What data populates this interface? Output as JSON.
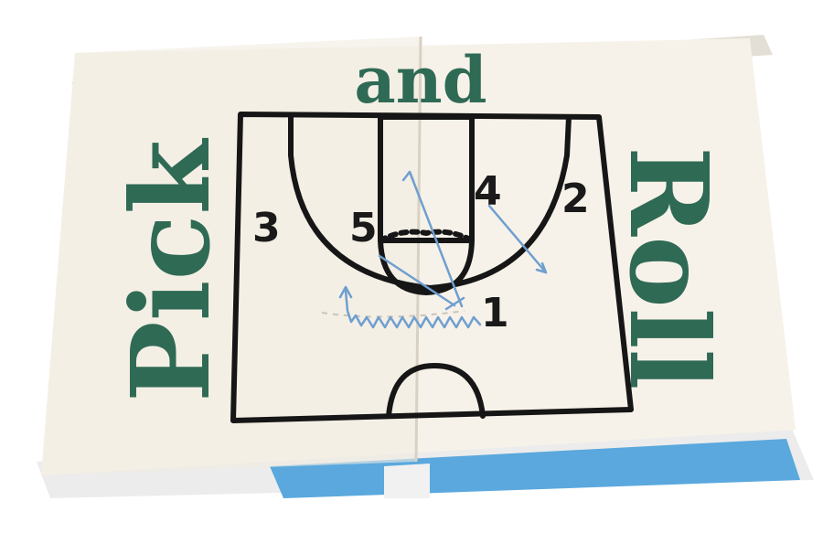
{
  "poster": {
    "title_top": "and",
    "title_left": "Pick",
    "title_right": "Roll",
    "player_numbers": [
      "1",
      "2",
      "3",
      "4",
      "5"
    ]
  },
  "colors": {
    "ink_green": "#2f6a55",
    "court_line": "#161616",
    "arrow_blue": "#6f9fd0",
    "paper": "#f7f2e9",
    "strip_blue": "#5aa8dd"
  },
  "icons": [
    "basketball-court-diagram"
  ]
}
